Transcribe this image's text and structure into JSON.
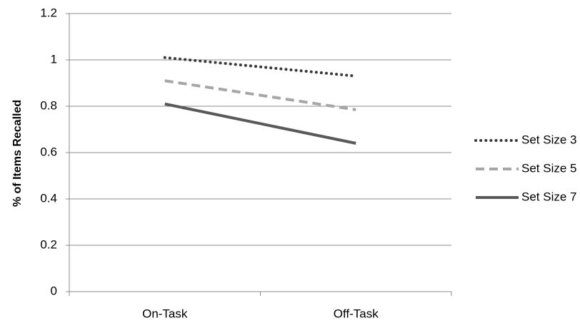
{
  "chart_data": {
    "type": "line",
    "categories": [
      "On-Task",
      "Off-Task"
    ],
    "series": [
      {
        "name": "Set Size 3",
        "values": [
          1.01,
          0.93
        ],
        "color": "#3a3a3a",
        "dash": "dotted"
      },
      {
        "name": "Set Size 5",
        "values": [
          0.91,
          0.785
        ],
        "color": "#a6a6a6",
        "dash": "dashed"
      },
      {
        "name": "Set Size 7",
        "values": [
          0.81,
          0.64
        ],
        "color": "#595959",
        "dash": "solid"
      }
    ],
    "title": "",
    "xlabel": "",
    "ylabel": "% of Items Recalled",
    "ylim": [
      0,
      1.2
    ],
    "yticks": [
      "0",
      "0.2",
      "0.4",
      "0.6",
      "0.8",
      "1",
      "1.2"
    ],
    "grid": "horizontal",
    "legend": "right"
  }
}
